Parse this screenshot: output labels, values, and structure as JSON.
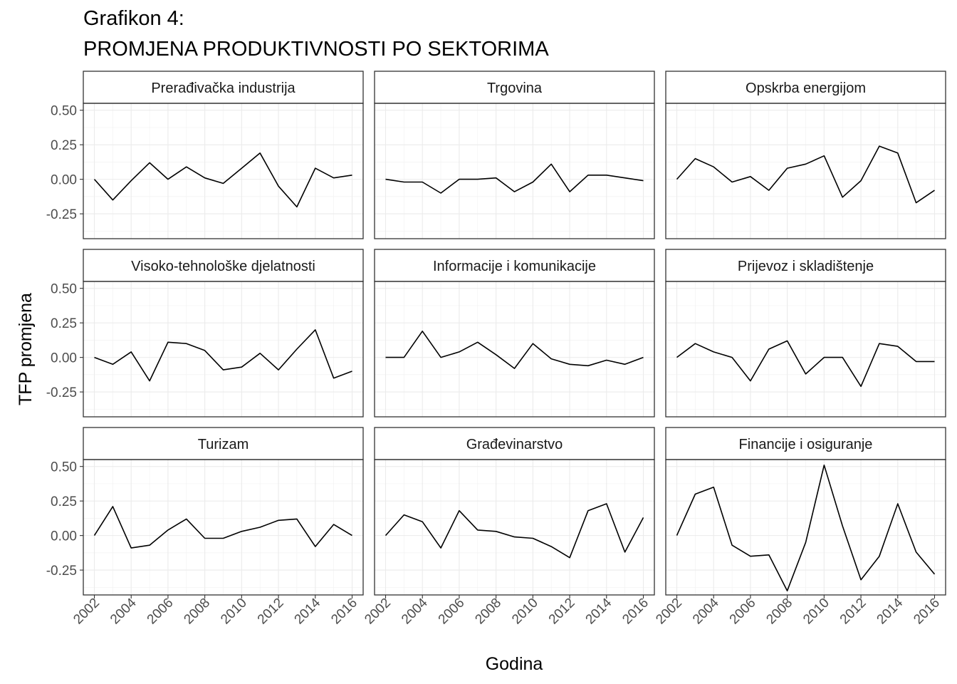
{
  "chart_data": {
    "type": "line",
    "title": [
      "Grafikon 4:",
      "PROMJENA PRODUKTIVNOSTI PO SEKTORIMA"
    ],
    "xlabel": "Godina",
    "ylabel": "TFP promjena",
    "x": [
      2002,
      2003,
      2004,
      2005,
      2006,
      2007,
      2008,
      2009,
      2010,
      2011,
      2012,
      2013,
      2014,
      2015,
      2016
    ],
    "x_ticks": [
      "2002",
      "2004",
      "2006",
      "2008",
      "2010",
      "2012",
      "2014",
      "2016"
    ],
    "y_ticks": [
      "0.50",
      "0.25",
      "0.00",
      "-0.25"
    ],
    "ylim": [
      -0.43,
      0.55
    ],
    "xlim": [
      2001.4,
      2016.6
    ],
    "grid": true,
    "facets": [
      {
        "label": "Prerađivačka industrija",
        "values": [
          0.0,
          -0.15,
          -0.01,
          0.12,
          0.0,
          0.09,
          0.01,
          -0.03,
          0.08,
          0.19,
          -0.05,
          -0.2,
          0.08,
          0.01,
          0.03
        ]
      },
      {
        "label": "Trgovina",
        "values": [
          0.0,
          -0.02,
          -0.02,
          -0.1,
          0.0,
          0.0,
          0.01,
          -0.09,
          -0.02,
          0.11,
          -0.09,
          0.03,
          0.03,
          0.01,
          -0.01
        ]
      },
      {
        "label": "Opskrba energijom",
        "values": [
          0.0,
          0.15,
          0.09,
          -0.02,
          0.02,
          -0.08,
          0.08,
          0.11,
          0.17,
          -0.13,
          -0.01,
          0.24,
          0.19,
          -0.17,
          -0.08
        ]
      },
      {
        "label": "Visoko-tehnološke djelatnosti",
        "values": [
          0.0,
          -0.05,
          0.04,
          -0.17,
          0.11,
          0.1,
          0.05,
          -0.09,
          -0.07,
          0.03,
          -0.09,
          0.06,
          0.2,
          -0.15,
          -0.1
        ]
      },
      {
        "label": "Informacije i komunikacije",
        "values": [
          0.0,
          0.0,
          0.19,
          0.0,
          0.04,
          0.11,
          0.02,
          -0.08,
          0.1,
          -0.01,
          -0.05,
          -0.06,
          -0.02,
          -0.05,
          0.0
        ]
      },
      {
        "label": "Prijevoz i skladištenje",
        "values": [
          0.0,
          0.1,
          0.04,
          0.0,
          -0.17,
          0.06,
          0.12,
          -0.12,
          0.0,
          0.0,
          -0.21,
          0.1,
          0.08,
          -0.03,
          -0.03
        ]
      },
      {
        "label": "Turizam",
        "values": [
          0.0,
          0.21,
          -0.09,
          -0.07,
          0.04,
          0.12,
          -0.02,
          -0.02,
          0.03,
          0.06,
          0.11,
          0.12,
          -0.08,
          0.08,
          0.0
        ]
      },
      {
        "label": "Građevinarstvo",
        "values": [
          0.0,
          0.15,
          0.1,
          -0.09,
          0.18,
          0.04,
          0.03,
          -0.01,
          -0.02,
          -0.08,
          -0.16,
          0.18,
          0.23,
          -0.12,
          0.13
        ]
      },
      {
        "label": "Financije i osiguranje",
        "values": [
          0.0,
          0.3,
          0.35,
          -0.07,
          -0.15,
          -0.14,
          -0.4,
          -0.05,
          0.51,
          0.07,
          -0.32,
          -0.15,
          0.23,
          -0.12,
          -0.28
        ]
      }
    ]
  }
}
